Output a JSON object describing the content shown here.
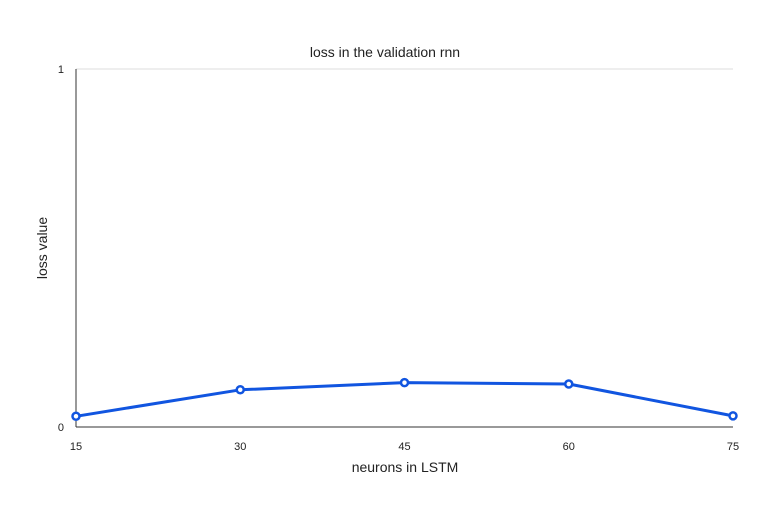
{
  "chart_data": {
    "type": "line",
    "title": "loss in the validation rnn",
    "xlabel": "neurons in LSTM",
    "ylabel": "loss value",
    "x": [
      15,
      30,
      45,
      60,
      75
    ],
    "x_tick_labels": [
      "15",
      "30",
      "45",
      "60",
      "75"
    ],
    "y_tick_labels": [
      "0",
      "1"
    ],
    "ylim": [
      0,
      1
    ],
    "grid": true,
    "legend": "none",
    "series": [
      {
        "values": [
          0.03,
          0.104,
          0.124,
          0.12,
          0.031
        ],
        "color": "#1155e0"
      }
    ]
  }
}
